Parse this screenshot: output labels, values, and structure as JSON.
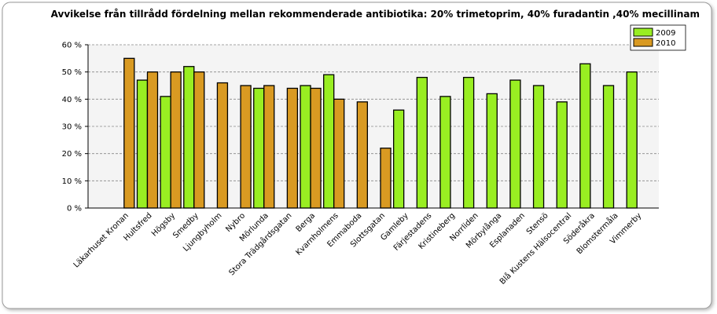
{
  "chart_data": {
    "type": "bar",
    "title": "Avvikelse från tillrådd fördelning mellan rekommenderade antibiotika: 20% trimetoprim, 40% furadantin ,40% mecillinam",
    "categories": [
      "Läkarhuset Kronan",
      "Hultsfred",
      "Högsby",
      "Smedby",
      "Ljungbyholm",
      "Nybro",
      "Mörlunda",
      "Stora Trädgårdsgatan",
      "Berga",
      "Kvarnholmens",
      "Emmaboda",
      "Slottsgatan",
      "Gamleby",
      "Färjestadens",
      "Kristineberg",
      "Norrliden",
      "Mörbylånga",
      "Esplanaden",
      "Stensö",
      "Blå Kustens Hälsocentral",
      "Söderåkra",
      "Blomstermåla",
      "Vimmerby"
    ],
    "series": [
      {
        "name": "2009",
        "color": "#99ee22",
        "values": [
          null,
          47,
          41,
          52,
          null,
          null,
          44,
          null,
          45,
          49,
          null,
          null,
          36,
          48,
          41,
          48,
          42,
          47,
          45,
          39,
          53,
          45,
          50
        ]
      },
      {
        "name": "2010",
        "color": "#d99a22",
        "values": [
          55,
          50,
          50,
          50,
          46,
          45,
          45,
          44,
          44,
          40,
          39,
          22,
          null,
          null,
          null,
          null,
          null,
          null,
          null,
          null,
          null,
          null,
          null
        ]
      }
    ],
    "ylim": [
      0,
      60
    ],
    "yticks": [
      {
        "value": 0,
        "label": "0 %"
      },
      {
        "value": 10,
        "label": "10 %"
      },
      {
        "value": 20,
        "label": "20 %"
      },
      {
        "value": 30,
        "label": "30 %"
      },
      {
        "value": 40,
        "label": "40 %"
      },
      {
        "value": 50,
        "label": "50 %"
      },
      {
        "value": 60,
        "label": "60 %"
      }
    ],
    "grid": true,
    "legend": "top-right"
  }
}
